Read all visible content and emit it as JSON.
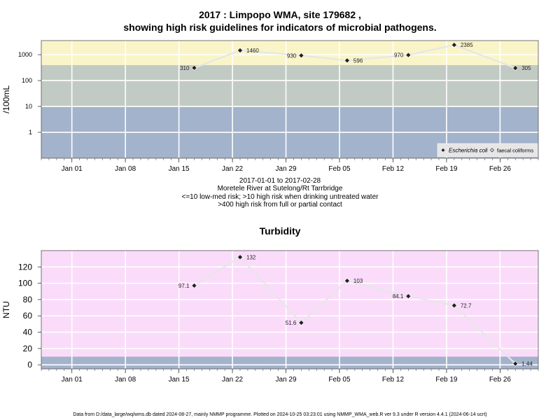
{
  "header": {
    "title_line1": "2017 : Limpopo WMA, site 179682 ,",
    "title_line2": "showing high risk guidelines for indicators of microbial pathogens."
  },
  "captions": {
    "date_range": "2017-01-01 to 2017-02-28",
    "site_name": "Moretele River at Sutelong/Rt Tarrbridge",
    "guideline_1": "<=10 low-med risk; >10 high risk when drinking untreated water",
    "guideline_2": ">400 high risk from full or partial contact"
  },
  "footer": {
    "note": "Data from D:/data_large/wq/wms.db dated 2024-08-27, mainly NMMP programme. Plotted on 2024-10-25 03:23:01 using NMMP_WMA_web.R ver 9.3 under R version 4.4.1 (2024-06-14 ucrt)"
  },
  "chart_data": [
    {
      "type": "scatter",
      "title": "",
      "ylabel": "/100mL",
      "y_scale": "log",
      "ylim": [
        0.1,
        3500
      ],
      "y_ticks": [
        "1",
        "10",
        "100",
        "1000"
      ],
      "y_tick_values": [
        1,
        10,
        100,
        1000
      ],
      "xlim": [
        "2016-12-28",
        "2017-03-03"
      ],
      "x_ticks": [
        "Jan 01",
        "Jan 08",
        "Jan 15",
        "Jan 22",
        "Jan 29",
        "Feb 05",
        "Feb 12",
        "Feb 19",
        "Feb 26"
      ],
      "x_tick_dates": [
        "2017-01-01",
        "2017-01-08",
        "2017-01-15",
        "2017-01-22",
        "2017-01-29",
        "2017-02-05",
        "2017-02-12",
        "2017-02-19",
        "2017-02-26"
      ],
      "grid": true,
      "bands": [
        {
          "from": 0.1,
          "to": 10,
          "color": "#a3b3cc"
        },
        {
          "from": 10,
          "to": 400,
          "color": "#c2cbc3"
        },
        {
          "from": 400,
          "to": 3500,
          "color": "#faf5c8"
        }
      ],
      "series": [
        {
          "name": "Escherichia coli",
          "marker": "filled-diamond",
          "line_color": "#e6e6e6",
          "x": [
            "2017-01-17",
            "2017-01-23",
            "2017-01-31",
            "2017-02-06",
            "2017-02-14",
            "2017-02-20",
            "2017-02-28"
          ],
          "y": [
            310,
            1460,
            930,
            596,
            970,
            2385,
            305
          ],
          "labels": [
            "310",
            "1460",
            "930",
            "596",
            "970",
            "2385",
            "305"
          ],
          "label_side": [
            "left",
            "right",
            "left",
            "right",
            "left",
            "right",
            "right"
          ]
        }
      ],
      "legend": {
        "position": "bottom-right",
        "entries": [
          "Escherichia coli",
          "faecal coliforms"
        ]
      }
    },
    {
      "type": "scatter",
      "title": "Turbidity",
      "ylabel": "NTU",
      "ylim": [
        -5,
        140
      ],
      "y_ticks": [
        "0",
        "20",
        "40",
        "60",
        "80",
        "100",
        "120"
      ],
      "y_tick_values": [
        0,
        20,
        40,
        60,
        80,
        100,
        120
      ],
      "xlim": [
        "2016-12-28",
        "2017-03-03"
      ],
      "x_ticks": [
        "Jan 01",
        "Jan 08",
        "Jan 15",
        "Jan 22",
        "Jan 29",
        "Feb 05",
        "Feb 12",
        "Feb 19",
        "Feb 26"
      ],
      "x_tick_dates": [
        "2017-01-01",
        "2017-01-08",
        "2017-01-15",
        "2017-01-22",
        "2017-01-29",
        "2017-02-05",
        "2017-02-12",
        "2017-02-19",
        "2017-02-26"
      ],
      "grid": true,
      "bands": [
        {
          "from": -5,
          "to": 10,
          "color": "#a3b3cc"
        },
        {
          "from": 10,
          "to": 140,
          "color": "#fadcfa"
        }
      ],
      "series": [
        {
          "name": "",
          "marker": "filled-diamond",
          "line_color": "#e6e6e6",
          "x": [
            "2017-01-17",
            "2017-01-23",
            "2017-01-31",
            "2017-02-06",
            "2017-02-14",
            "2017-02-20",
            "2017-02-28"
          ],
          "y": [
            97.1,
            132,
            51.6,
            103,
            84.1,
            72.7,
            1.44
          ],
          "labels": [
            "97.1",
            "132",
            "51.6",
            "103",
            "84.1",
            "72.7",
            "1.44"
          ],
          "label_side": [
            "left",
            "right",
            "left",
            "right",
            "left",
            "right",
            "right"
          ]
        }
      ]
    }
  ]
}
